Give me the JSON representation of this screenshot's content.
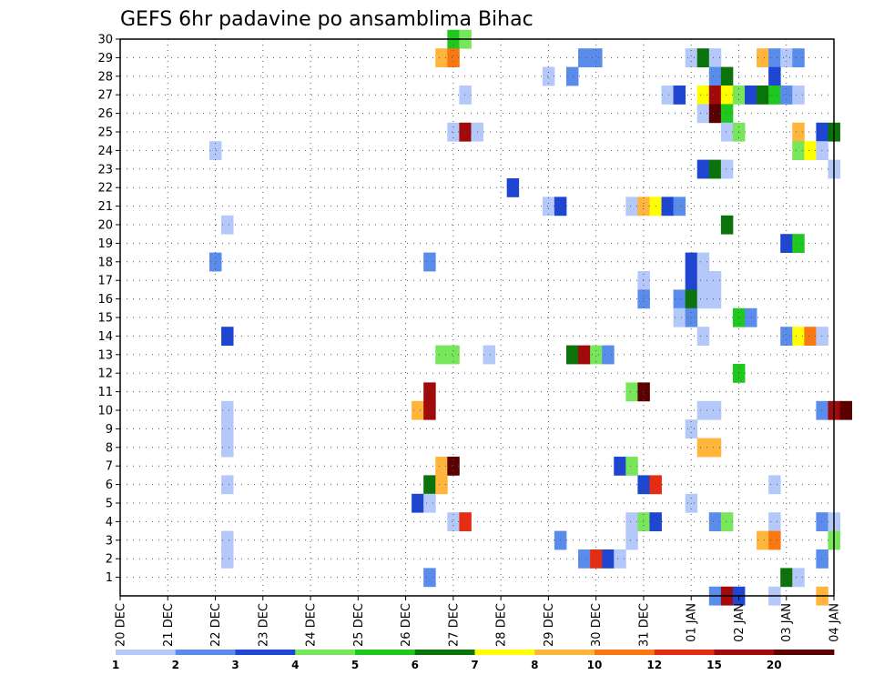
{
  "chart_data": {
    "type": "heatmap",
    "title": "GEFS 6hr padavine po ansamblima Bihac",
    "x_ticks": [
      "20 DEC",
      "21 DEC",
      "22 DEC",
      "23 DEC",
      "24 DEC",
      "25 DEC",
      "26 DEC",
      "27 DEC",
      "28 DEC",
      "29 DEC",
      "30 DEC",
      "31 DEC",
      "01 JAN",
      "02 JAN",
      "03 JAN",
      "04 JAN"
    ],
    "y_ticks": [
      1,
      2,
      3,
      4,
      5,
      6,
      7,
      8,
      9,
      10,
      11,
      12,
      13,
      14,
      15,
      16,
      17,
      18,
      19,
      20,
      21,
      22,
      23,
      24,
      25,
      26,
      27,
      28,
      29,
      30
    ],
    "ylim": [
      0,
      30
    ],
    "x_steps_per_day": 4,
    "grid": true,
    "colorbar": {
      "levels": [
        "1",
        "2",
        "3",
        "4",
        "5",
        "6",
        "7",
        "8",
        "10",
        "12",
        "15",
        "20"
      ],
      "colors": [
        "#b4c8fa",
        "#5a8ceb",
        "#1e46d2",
        "#78e65a",
        "#1ec81e",
        "#0a730a",
        "#ffff00",
        "#ffb43c",
        "#fa7814",
        "#e62d14",
        "#a00a0a",
        "#5a0000"
      ]
    },
    "cells": [
      [
        27.0,
        30,
        5
      ],
      [
        27.25,
        30,
        4
      ],
      [
        26.75,
        29,
        8
      ],
      [
        27.0,
        29,
        9
      ],
      [
        29.75,
        29,
        2
      ],
      [
        30.0,
        29,
        2
      ],
      [
        32.0,
        29,
        1
      ],
      [
        32.25,
        29,
        6
      ],
      [
        32.5,
        29,
        1
      ],
      [
        33.5,
        29,
        8
      ],
      [
        33.75,
        29,
        2
      ],
      [
        34.0,
        29,
        1
      ],
      [
        34.25,
        29,
        2
      ],
      [
        29.0,
        28,
        1
      ],
      [
        29.5,
        28,
        2
      ],
      [
        32.5,
        28,
        2
      ],
      [
        32.75,
        28,
        6
      ],
      [
        33.75,
        28,
        1
      ],
      [
        33.75,
        28,
        3
      ],
      [
        27.25,
        27,
        1
      ],
      [
        31.5,
        27,
        1
      ],
      [
        31.75,
        27,
        3
      ],
      [
        32.25,
        27,
        7
      ],
      [
        32.5,
        27,
        11
      ],
      [
        32.75,
        27,
        7
      ],
      [
        33.0,
        27,
        4
      ],
      [
        33.25,
        27,
        3
      ],
      [
        33.5,
        27,
        6
      ],
      [
        33.75,
        27,
        5
      ],
      [
        34.0,
        27,
        2
      ],
      [
        34.25,
        27,
        1
      ],
      [
        32.25,
        26,
        1
      ],
      [
        32.5,
        26,
        12
      ],
      [
        32.75,
        26,
        5
      ],
      [
        27.0,
        25,
        1
      ],
      [
        27.25,
        25,
        11
      ],
      [
        27.5,
        25,
        1
      ],
      [
        32.75,
        25,
        1
      ],
      [
        33.0,
        25,
        4
      ],
      [
        34.25,
        25,
        8
      ],
      [
        34.75,
        25,
        3
      ],
      [
        35.0,
        25,
        6
      ],
      [
        22.0,
        24,
        1
      ],
      [
        34.25,
        24,
        4
      ],
      [
        34.5,
        24,
        7
      ],
      [
        34.75,
        24,
        1
      ],
      [
        32.25,
        23,
        3
      ],
      [
        32.5,
        23,
        6
      ],
      [
        32.75,
        23,
        1
      ],
      [
        35.0,
        23,
        1
      ],
      [
        28.25,
        22,
        3
      ],
      [
        29.0,
        21,
        1
      ],
      [
        29.25,
        21,
        3
      ],
      [
        30.75,
        21,
        1
      ],
      [
        31.0,
        21,
        8
      ],
      [
        31.25,
        21,
        7
      ],
      [
        31.5,
        21,
        3
      ],
      [
        31.75,
        21,
        2
      ],
      [
        22.25,
        20,
        1
      ],
      [
        32.75,
        20,
        6
      ],
      [
        34.0,
        19,
        3
      ],
      [
        34.25,
        19,
        5
      ],
      [
        22.0,
        18,
        2
      ],
      [
        26.5,
        18,
        2
      ],
      [
        32.0,
        18,
        3
      ],
      [
        32.25,
        18,
        1
      ],
      [
        31.0,
        17,
        1
      ],
      [
        32.0,
        17,
        3
      ],
      [
        32.25,
        17,
        1
      ],
      [
        32.5,
        17,
        1
      ],
      [
        31.0,
        16,
        2
      ],
      [
        31.75,
        16,
        2
      ],
      [
        32.0,
        16,
        6
      ],
      [
        32.25,
        16,
        1
      ],
      [
        32.5,
        16,
        1
      ],
      [
        31.75,
        15,
        1
      ],
      [
        32.0,
        15,
        2
      ],
      [
        33.0,
        15,
        5
      ],
      [
        33.25,
        15,
        2
      ],
      [
        22.25,
        14,
        3
      ],
      [
        32.25,
        14,
        1
      ],
      [
        34.0,
        14,
        2
      ],
      [
        34.25,
        14,
        7
      ],
      [
        34.5,
        14,
        9
      ],
      [
        34.75,
        14,
        1
      ],
      [
        26.75,
        13,
        4
      ],
      [
        27.0,
        13,
        4
      ],
      [
        27.75,
        13,
        1
      ],
      [
        29.5,
        13,
        6
      ],
      [
        29.75,
        13,
        11
      ],
      [
        30.0,
        13,
        4
      ],
      [
        30.25,
        13,
        2
      ],
      [
        33.0,
        12,
        5
      ],
      [
        26.5,
        11,
        11
      ],
      [
        30.75,
        11,
        4
      ],
      [
        31.0,
        11,
        12
      ],
      [
        22.25,
        10,
        1
      ],
      [
        26.25,
        10,
        8
      ],
      [
        26.5,
        10,
        11
      ],
      [
        32.25,
        10,
        1
      ],
      [
        32.5,
        10,
        1
      ],
      [
        34.75,
        10,
        2
      ],
      [
        35.0,
        10,
        11
      ],
      [
        35.25,
        10,
        12
      ],
      [
        22.25,
        9,
        1
      ],
      [
        32.0,
        9,
        1
      ],
      [
        22.25,
        8,
        1
      ],
      [
        32.25,
        8,
        8
      ],
      [
        32.5,
        8,
        8
      ],
      [
        26.75,
        7,
        8
      ],
      [
        27.0,
        7,
        12
      ],
      [
        30.5,
        7,
        3
      ],
      [
        30.75,
        7,
        4
      ],
      [
        22.25,
        6,
        1
      ],
      [
        26.5,
        6,
        6
      ],
      [
        26.75,
        6,
        8
      ],
      [
        31.0,
        6,
        3
      ],
      [
        31.25,
        6,
        10
      ],
      [
        33.75,
        6,
        1
      ],
      [
        26.25,
        5,
        3
      ],
      [
        26.5,
        5,
        1
      ],
      [
        32.0,
        5,
        1
      ],
      [
        27.0,
        4,
        1
      ],
      [
        27.25,
        4,
        10
      ],
      [
        30.75,
        4,
        1
      ],
      [
        31.0,
        4,
        4
      ],
      [
        31.25,
        4,
        3
      ],
      [
        32.5,
        4,
        2
      ],
      [
        32.75,
        4,
        4
      ],
      [
        33.75,
        4,
        1
      ],
      [
        34.75,
        4,
        2
      ],
      [
        35.0,
        4,
        1
      ],
      [
        22.25,
        3,
        1
      ],
      [
        29.25,
        3,
        2
      ],
      [
        30.75,
        3,
        1
      ],
      [
        33.5,
        3,
        8
      ],
      [
        33.75,
        3,
        9
      ],
      [
        35.0,
        3,
        4
      ],
      [
        22.25,
        2,
        1
      ],
      [
        29.75,
        2,
        2
      ],
      [
        30.0,
        2,
        10
      ],
      [
        30.25,
        2,
        3
      ],
      [
        30.5,
        2,
        1
      ],
      [
        34.75,
        2,
        2
      ],
      [
        26.5,
        1,
        2
      ],
      [
        34.0,
        1,
        6
      ],
      [
        34.25,
        1,
        1
      ],
      [
        32.5,
        0,
        2
      ],
      [
        32.75,
        0,
        11
      ],
      [
        33.0,
        0,
        3
      ],
      [
        33.75,
        0,
        1
      ],
      [
        34.75,
        0,
        8
      ]
    ]
  }
}
